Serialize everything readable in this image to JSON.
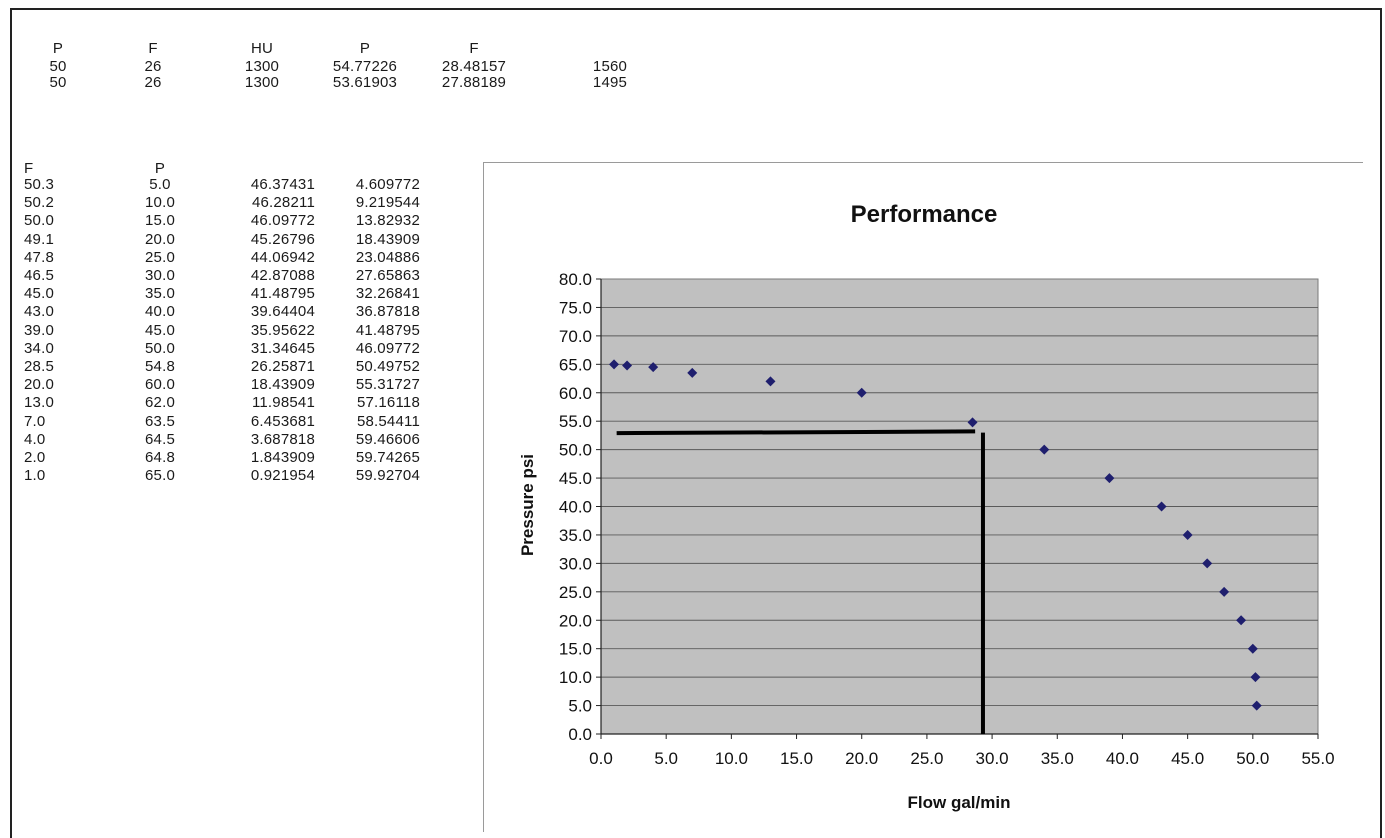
{
  "top_table": {
    "headers": [
      "P",
      "F",
      "HU",
      "P",
      "F",
      ""
    ],
    "rows": [
      [
        "50",
        "26",
        "1300",
        "54.77226",
        "28.48157",
        "1560"
      ],
      [
        "50",
        "26",
        "1300",
        "53.61903",
        "27.88189",
        "1495"
      ]
    ]
  },
  "lower_table": {
    "headers": [
      "F",
      "P",
      "",
      ""
    ],
    "rows": [
      [
        "50.3",
        "5.0",
        "46.37431",
        "4.609772"
      ],
      [
        "50.2",
        "10.0",
        "46.28211",
        "9.219544"
      ],
      [
        "50.0",
        "15.0",
        "46.09772",
        "13.82932"
      ],
      [
        "49.1",
        "20.0",
        "45.26796",
        "18.43909"
      ],
      [
        "47.8",
        "25.0",
        "44.06942",
        "23.04886"
      ],
      [
        "46.5",
        "30.0",
        "42.87088",
        "27.65863"
      ],
      [
        "45.0",
        "35.0",
        "41.48795",
        "32.26841"
      ],
      [
        "43.0",
        "40.0",
        "39.64404",
        "36.87818"
      ],
      [
        "39.0",
        "45.0",
        "35.95622",
        "41.48795"
      ],
      [
        "34.0",
        "50.0",
        "31.34645",
        "46.09772"
      ],
      [
        "28.5",
        "54.8",
        "26.25871",
        "50.49752"
      ],
      [
        "20.0",
        "60.0",
        "18.43909",
        "55.31727"
      ],
      [
        "13.0",
        "62.0",
        "11.98541",
        "57.16118"
      ],
      [
        "7.0",
        "63.5",
        "6.453681",
        "58.54411"
      ],
      [
        "4.0",
        "64.5",
        "3.687818",
        "59.46606"
      ],
      [
        "2.0",
        "64.8",
        "1.843909",
        "59.74265"
      ],
      [
        "1.0",
        "65.0",
        "0.921954",
        "59.92704"
      ]
    ]
  },
  "chart_data": {
    "type": "scatter",
    "title": "Performance",
    "xlabel": "Flow gal/min",
    "ylabel": "Pressure psi",
    "xlim": [
      0,
      55
    ],
    "ylim": [
      0,
      80
    ],
    "x_ticks": [
      "0.0",
      "5.0",
      "10.0",
      "15.0",
      "20.0",
      "25.0",
      "30.0",
      "35.0",
      "40.0",
      "45.0",
      "50.0",
      "55.0"
    ],
    "y_ticks": [
      "0.0",
      "5.0",
      "10.0",
      "15.0",
      "20.0",
      "25.0",
      "30.0",
      "35.0",
      "40.0",
      "45.0",
      "50.0",
      "55.0",
      "60.0",
      "65.0",
      "70.0",
      "75.0",
      "80.0"
    ],
    "grid": "horizontal",
    "legend": "none",
    "series": [
      {
        "x": [
          50.3,
          50.2,
          50.0,
          49.1,
          47.8,
          46.5,
          45.0,
          43.0,
          39.0,
          34.0,
          28.5,
          20.0,
          13.0,
          7.0,
          4.0,
          2.0,
          1.0
        ],
        "y": [
          5.0,
          10.0,
          15.0,
          20.0,
          25.0,
          30.0,
          35.0,
          40.0,
          45.0,
          50.0,
          54.8,
          60.0,
          62.0,
          63.5,
          64.5,
          64.8,
          65.0
        ]
      }
    ],
    "annotations": [
      {
        "type": "line",
        "x": [
          1.2,
          28.7
        ],
        "y": [
          52.9,
          53.2
        ]
      },
      {
        "type": "line",
        "x": [
          29.3,
          29.3
        ],
        "y": [
          53.0,
          0
        ]
      }
    ],
    "colors": {
      "plot_bg": "#c0c0c0",
      "marker": "#1f1f6e",
      "gridline": "#5a5a5a",
      "annotation": "#000000"
    }
  }
}
